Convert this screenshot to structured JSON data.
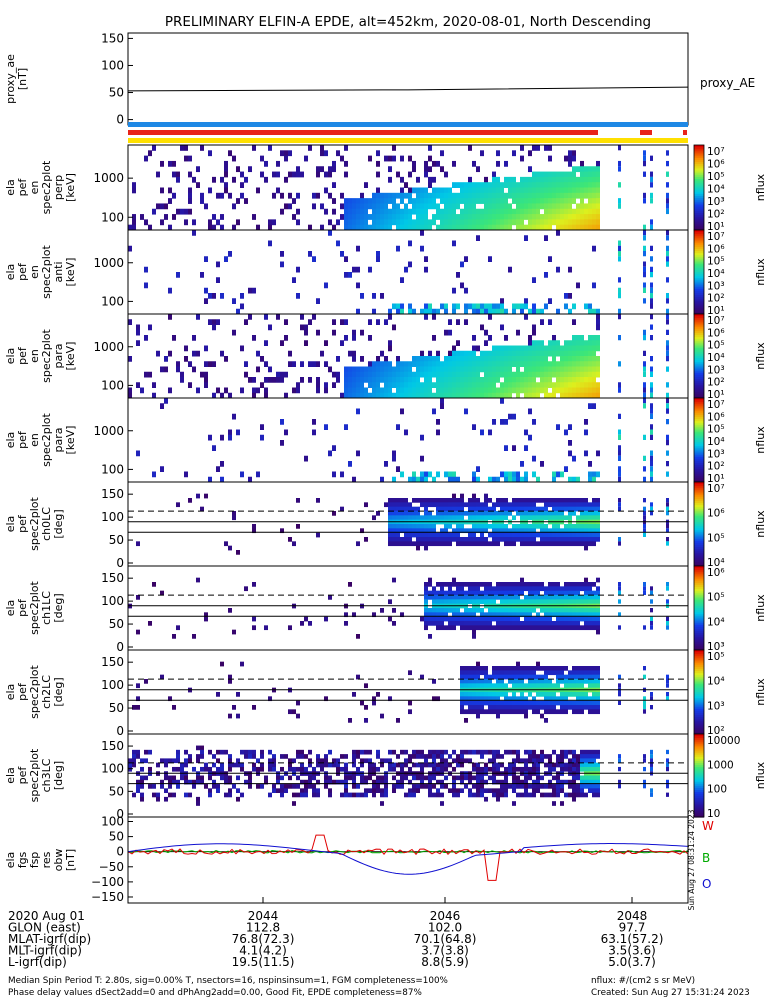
{
  "title": "PRELIMINARY ELFIN-A EPDE, alt=452km, 2020-08-01, North Descending",
  "colors": {
    "bar_blue": "#1e88e5",
    "bar_red": "#e8231a",
    "bar_yellow": "#ffe000",
    "line_red": "#e00000",
    "line_green": "#00aa00",
    "line_blue": "#1010d0"
  },
  "chart_data": [
    {
      "id": "proxy_ae",
      "type": "line",
      "ylabel": [
        "proxy_ae",
        "[nT]"
      ],
      "yticks": [
        "150",
        "100",
        "50",
        "0"
      ],
      "ylim": [
        -10,
        160
      ],
      "legend": "proxy_AE",
      "x": [
        0,
        0.5,
        1.0
      ],
      "y": [
        53,
        55,
        60
      ]
    },
    {
      "id": "pef_en_perp",
      "type": "heatmap",
      "ylabel": [
        "ela",
        "pef",
        "en",
        "spec2plot",
        "perp",
        "[keV]"
      ],
      "yticks": [
        "1000",
        "100"
      ],
      "cbar_ticks": [
        "10⁷",
        "10⁶",
        "10⁵",
        "10⁴",
        "10³",
        "10²",
        "10¹"
      ],
      "cbar_label": "nflux",
      "shape": "en"
    },
    {
      "id": "pef_en_anti",
      "type": "heatmap",
      "ylabel": [
        "ela",
        "pef",
        "en",
        "spec2plot",
        "anti",
        "[keV]"
      ],
      "yticks": [
        "1000",
        "100"
      ],
      "cbar_ticks": [
        "10⁷",
        "10⁶",
        "10⁵",
        "10⁴",
        "10³",
        "10²",
        "10¹"
      ],
      "cbar_label": "nflux",
      "shape": "en_weak"
    },
    {
      "id": "pef_en_para",
      "type": "heatmap",
      "ylabel": [
        "ela",
        "pef",
        "en",
        "spec2plot",
        "para",
        "[keV]"
      ],
      "yticks": [
        "1000",
        "100"
      ],
      "cbar_ticks": [
        "10⁷",
        "10⁶",
        "10⁵",
        "10⁴",
        "10³",
        "10²",
        "10¹"
      ],
      "cbar_label": "nflux",
      "shape": "en"
    },
    {
      "id": "pef_en_para2",
      "type": "heatmap",
      "ylabel": [
        "ela",
        "pef",
        "en",
        "spec2plot",
        "para",
        "[keV]"
      ],
      "yticks": [
        "1000",
        "100"
      ],
      "cbar_ticks": [
        "10⁷",
        "10⁶",
        "10⁵",
        "10⁴",
        "10³",
        "10²",
        "10¹"
      ],
      "cbar_label": "nflux",
      "shape": "en_weak"
    },
    {
      "id": "ch0LC",
      "type": "heatmap",
      "ylabel": [
        "ela",
        "pef",
        "spec2plot",
        "ch0LC",
        "[deg]"
      ],
      "yticks": [
        "150",
        "100",
        "50",
        "0"
      ],
      "cbar_ticks": [
        "10⁷",
        "10⁶",
        "10⁵",
        "10⁴"
      ],
      "cbar_label": "nflux",
      "shape": "pa"
    },
    {
      "id": "ch1LC",
      "type": "heatmap",
      "ylabel": [
        "ela",
        "pef",
        "spec2plot",
        "ch1LC",
        "[deg]"
      ],
      "yticks": [
        "150",
        "100",
        "50",
        "0"
      ],
      "cbar_ticks": [
        "10⁶",
        "10⁵",
        "10⁴",
        "10³"
      ],
      "cbar_label": "nflux",
      "shape": "pa"
    },
    {
      "id": "ch2LC",
      "type": "heatmap",
      "ylabel": [
        "ela",
        "pef",
        "spec2plot",
        "ch2LC",
        "[deg]"
      ],
      "yticks": [
        "150",
        "100",
        "50",
        "0"
      ],
      "cbar_ticks": [
        "10⁵",
        "10⁴",
        "10³",
        "10²"
      ],
      "cbar_label": "nflux",
      "shape": "pa"
    },
    {
      "id": "ch3LC",
      "type": "heatmap",
      "ylabel": [
        "ela",
        "pef",
        "spec2plot",
        "ch3LC",
        "[deg]"
      ],
      "yticks": [
        "150",
        "100",
        "50",
        "0"
      ],
      "cbar_ticks": [
        "10000",
        "1000",
        "100",
        "10"
      ],
      "cbar_label": "nflux",
      "shape": "pa"
    },
    {
      "id": "fgs_res",
      "type": "line",
      "ylabel": [
        "ela",
        "fgs",
        "fsp",
        "res",
        "obw",
        "[nT]"
      ],
      "yticks": [
        "100",
        "50",
        "0",
        "−50",
        "−100",
        "−150"
      ],
      "legend_labels": [
        "W",
        "B",
        "O"
      ],
      "side_label": "Sun Aug 27 08:31:24 2023"
    }
  ],
  "xaxis": {
    "ticks": [
      "2044",
      "2046",
      "2048"
    ],
    "rows": [
      {
        "label": "2020 Aug 01",
        "values": [
          "",
          "",
          ""
        ]
      },
      {
        "label": "GLON (east)",
        "values": [
          "112.8",
          "102.0",
          "97.7"
        ]
      },
      {
        "label": "MLAT-igrf(dip)",
        "values": [
          "76.8(72.3)",
          "70.1(64.8)",
          "63.1(57.2)"
        ]
      },
      {
        "label": "MLT-igrf(dip)",
        "values": [
          "4.1(4.2)",
          "3.7(3.8)",
          "3.5(3.6)"
        ]
      },
      {
        "label": "L-igrf(dip)",
        "values": [
          "19.5(11.5)",
          "8.8(5.9)",
          "5.0(3.7)"
        ]
      }
    ]
  },
  "footer": {
    "line1": "Median Spin Period T: 2.80s, sig=0.00% T, nsectors=16, nspinsinsum=1, FGM completeness=100%",
    "line2": "Phase delay values dSect2add=0 and dPhAng2add=0.00, Good Fit, EPDE completeness=87%",
    "units": "nflux: #/(cm2 s sr MeV)",
    "created": "Created: Sun Aug 27 15:31:24 2023"
  }
}
